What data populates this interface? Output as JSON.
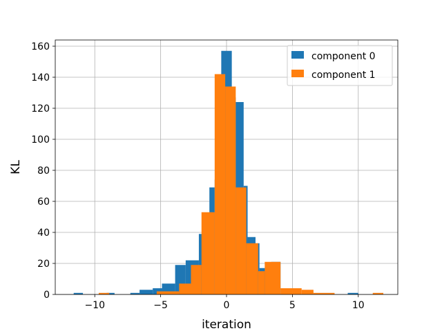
{
  "chart_data": {
    "type": "histogram",
    "xlabel": "iteration",
    "ylabel": "KL",
    "xlim": [
      -13.0,
      13.0
    ],
    "ylim": [
      0,
      164
    ],
    "xticks": [
      -10,
      -5,
      0,
      5,
      10
    ],
    "xtick_labels": [
      "−10",
      "−5",
      "0",
      "5",
      "10"
    ],
    "yticks": [
      0,
      20,
      40,
      60,
      80,
      100,
      120,
      140,
      160
    ],
    "ytick_labels": [
      "0",
      "20",
      "40",
      "60",
      "80",
      "100",
      "120",
      "140",
      "160"
    ],
    "grid": true,
    "legend_position": "top-right",
    "series": [
      {
        "name": "component 0",
        "color": "#1f77b4",
        "bins": [
          [
            -11.6,
            -10.9,
            1
          ],
          [
            -9.1,
            -8.5,
            1
          ],
          [
            -7.3,
            -6.6,
            1
          ],
          [
            -6.6,
            -5.6,
            3
          ],
          [
            -5.6,
            -4.9,
            4
          ],
          [
            -4.9,
            -3.9,
            7
          ],
          [
            -3.9,
            -3.1,
            19
          ],
          [
            -3.1,
            -2.1,
            22
          ],
          [
            -2.1,
            -1.8,
            39
          ],
          [
            -1.8,
            -1.3,
            48
          ],
          [
            -1.3,
            -0.9,
            69
          ],
          [
            -0.9,
            -0.4,
            74
          ],
          [
            -0.4,
            0.4,
            157
          ],
          [
            0.4,
            0.7,
            127
          ],
          [
            0.7,
            1.3,
            124
          ],
          [
            1.3,
            1.6,
            70
          ],
          [
            1.6,
            2.2,
            37
          ],
          [
            2.2,
            2.5,
            33
          ],
          [
            2.5,
            3.1,
            17
          ],
          [
            3.1,
            3.4,
            15
          ],
          [
            3.4,
            4.1,
            21
          ],
          [
            9.2,
            10.0,
            1
          ]
        ]
      },
      {
        "name": "component 1",
        "color": "#ff7f0e",
        "bins": [
          [
            -9.7,
            -8.9,
            1
          ],
          [
            -5.3,
            -3.6,
            2
          ],
          [
            -3.6,
            -2.7,
            7
          ],
          [
            -2.7,
            -1.9,
            19
          ],
          [
            -1.9,
            -0.9,
            53
          ],
          [
            -0.9,
            -0.1,
            142
          ],
          [
            -0.1,
            0.7,
            134
          ],
          [
            0.7,
            1.5,
            69
          ],
          [
            1.5,
            2.4,
            33
          ],
          [
            2.4,
            2.9,
            15
          ],
          [
            2.9,
            4.1,
            21
          ],
          [
            4.1,
            5.7,
            4
          ],
          [
            5.7,
            6.6,
            3
          ],
          [
            6.6,
            8.2,
            1
          ],
          [
            11.1,
            11.9,
            1
          ]
        ]
      }
    ]
  }
}
